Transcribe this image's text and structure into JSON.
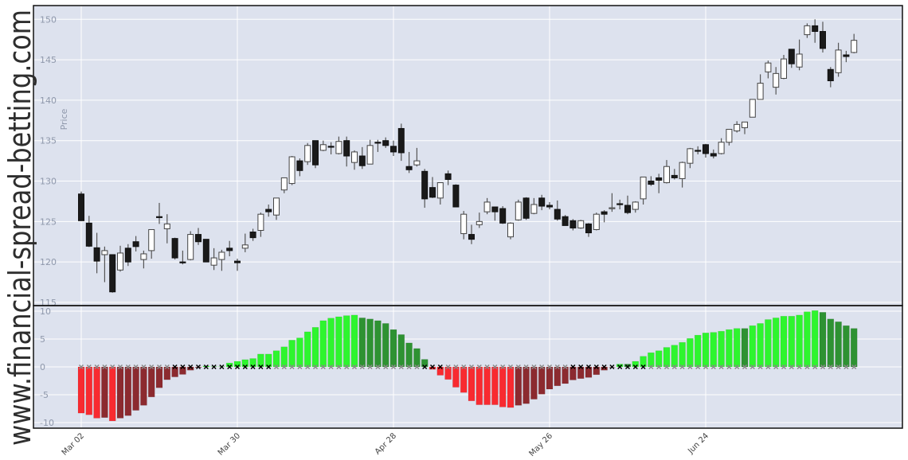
{
  "watermark": "www.financial-spread-betting.com",
  "colors": {
    "plot_background": "#dde2ee",
    "grid": "#ffffff",
    "candle_up": "#ffffff",
    "candle_down": "#1a1a1a",
    "lime": "#2ef52e",
    "darkgreen": "#2e9232",
    "red": "#f82a30",
    "maroon": "#8c2a2f",
    "gray": "#8a8a8a",
    "black": "#000000"
  },
  "chart_data": [
    {
      "type": "candlestick",
      "ylabel": "Price",
      "ylim": [
        114.6,
        151.7
      ],
      "y_ticks": [
        "115",
        "120",
        "125",
        "130",
        "135",
        "140",
        "145",
        "150"
      ],
      "grid": true,
      "x_ticks": [
        {
          "index": 0,
          "label": "Mar 02"
        },
        {
          "index": 20,
          "label": "Mar 30"
        },
        {
          "index": 40,
          "label": "Apr 28"
        },
        {
          "index": 60,
          "label": "May 26"
        },
        {
          "index": 80,
          "label": "Jun 24"
        }
      ],
      "ohlc": [
        [
          128.4,
          128.7,
          125.1,
          125.1
        ],
        [
          124.8,
          125.7,
          121.85,
          121.95
        ],
        [
          121.75,
          123.6,
          118.6,
          120.1
        ],
        [
          120.9,
          121.9,
          117.5,
          121.4
        ],
        [
          120.9,
          120.9,
          116.2,
          116.3
        ],
        [
          119.0,
          122.0,
          118.8,
          121.1
        ],
        [
          121.7,
          122.2,
          119.5,
          120.0
        ],
        [
          122.5,
          123.2,
          121.3,
          121.9
        ],
        [
          120.3,
          121.4,
          119.2,
          121.0
        ],
        [
          121.4,
          124.0,
          120.4,
          124.0
        ],
        [
          125.6,
          127.3,
          124.7,
          125.5
        ],
        [
          124.1,
          125.9,
          122.3,
          124.7
        ],
        [
          122.9,
          123.0,
          120.3,
          120.5
        ],
        [
          120.0,
          121.4,
          119.7,
          119.9
        ],
        [
          120.3,
          123.8,
          120.2,
          123.4
        ],
        [
          123.4,
          124.2,
          122.1,
          122.5
        ],
        [
          122.8,
          122.8,
          120.0,
          120.0
        ],
        [
          119.6,
          121.7,
          119.0,
          120.5
        ],
        [
          120.3,
          121.5,
          118.9,
          121.2
        ],
        [
          121.7,
          122.6,
          120.7,
          121.4
        ],
        [
          120.1,
          120.4,
          118.9,
          119.9
        ],
        [
          121.7,
          123.5,
          121.2,
          122.1
        ],
        [
          123.7,
          124.1,
          122.6,
          123.0
        ],
        [
          123.9,
          126.1,
          123.1,
          125.9
        ],
        [
          126.5,
          127.1,
          125.6,
          126.2
        ],
        [
          125.8,
          127.9,
          125.2,
          127.9
        ],
        [
          128.9,
          130.4,
          128.5,
          130.4
        ],
        [
          129.7,
          133.1,
          129.5,
          133.0
        ],
        [
          132.5,
          132.8,
          130.6,
          131.3
        ],
        [
          132.4,
          134.7,
          132.0,
          134.4
        ],
        [
          135.0,
          135.0,
          131.6,
          132.0
        ],
        [
          133.8,
          135.0,
          133.7,
          134.5
        ],
        [
          134.3,
          134.8,
          133.3,
          134.2
        ],
        [
          133.4,
          135.5,
          133.3,
          134.9
        ],
        [
          135.0,
          135.5,
          131.8,
          133.1
        ],
        [
          132.3,
          133.8,
          131.4,
          133.6
        ],
        [
          133.1,
          134.2,
          131.5,
          131.9
        ],
        [
          132.1,
          135.1,
          132.1,
          134.4
        ],
        [
          134.8,
          135.1,
          133.6,
          134.7
        ],
        [
          135.0,
          135.4,
          134.1,
          134.4
        ],
        [
          134.3,
          135.0,
          133.1,
          133.6
        ],
        [
          136.5,
          137.1,
          132.5,
          133.5
        ],
        [
          131.8,
          133.6,
          131.0,
          131.4
        ],
        [
          132.0,
          134.1,
          131.8,
          132.5
        ],
        [
          131.2,
          131.5,
          126.7,
          127.8
        ],
        [
          129.2,
          130.5,
          127.9,
          128.0
        ],
        [
          127.9,
          129.8,
          127.1,
          129.8
        ],
        [
          130.9,
          131.3,
          129.5,
          130.2
        ],
        [
          129.5,
          129.6,
          126.8,
          126.8
        ],
        [
          123.5,
          126.3,
          122.8,
          125.9
        ],
        [
          123.4,
          124.6,
          122.2,
          122.8
        ],
        [
          124.6,
          126.1,
          124.2,
          125.0
        ],
        [
          126.2,
          127.9,
          125.9,
          127.4
        ],
        [
          126.8,
          126.8,
          125.1,
          126.2
        ],
        [
          126.6,
          126.9,
          124.7,
          124.8
        ],
        [
          123.1,
          124.9,
          122.8,
          124.8
        ],
        [
          125.2,
          127.7,
          125.1,
          127.4
        ],
        [
          127.9,
          128.0,
          125.2,
          125.4
        ],
        [
          126.0,
          127.9,
          125.9,
          127.1
        ],
        [
          127.9,
          128.3,
          126.4,
          126.9
        ],
        [
          127.0,
          127.4,
          126.5,
          126.8
        ],
        [
          126.5,
          127.6,
          125.1,
          125.3
        ],
        [
          125.6,
          125.8,
          124.5,
          124.5
        ],
        [
          125.1,
          125.3,
          123.9,
          124.2
        ],
        [
          124.2,
          125.2,
          124.1,
          125.1
        ],
        [
          124.7,
          124.8,
          123.1,
          123.6
        ],
        [
          124.0,
          126.1,
          123.9,
          125.9
        ],
        [
          126.2,
          126.4,
          124.9,
          125.9
        ],
        [
          126.6,
          128.5,
          126.2,
          126.7
        ],
        [
          127.2,
          127.7,
          126.5,
          127.1
        ],
        [
          127.0,
          128.2,
          125.9,
          126.1
        ],
        [
          126.5,
          127.5,
          126.1,
          127.4
        ],
        [
          127.8,
          130.5,
          127.1,
          130.5
        ],
        [
          130.0,
          130.6,
          129.4,
          129.6
        ],
        [
          130.4,
          130.9,
          128.5,
          130.1
        ],
        [
          129.8,
          132.6,
          129.7,
          131.8
        ],
        [
          130.7,
          131.5,
          130.2,
          130.4
        ],
        [
          130.3,
          132.4,
          129.2,
          132.3
        ],
        [
          132.2,
          134.1,
          131.6,
          134.0
        ],
        [
          133.8,
          134.3,
          133.3,
          133.7
        ],
        [
          134.5,
          134.6,
          132.9,
          133.4
        ],
        [
          133.4,
          133.9,
          132.8,
          133.1
        ],
        [
          133.4,
          135.3,
          133.3,
          134.8
        ],
        [
          134.8,
          136.4,
          134.4,
          136.4
        ],
        [
          136.2,
          137.4,
          136.0,
          137.0
        ],
        [
          136.6,
          137.3,
          135.8,
          137.3
        ],
        [
          137.9,
          140.1,
          137.9,
          140.1
        ],
        [
          140.1,
          143.2,
          140.1,
          142.1
        ],
        [
          143.5,
          144.9,
          142.7,
          144.6
        ],
        [
          141.6,
          144.1,
          140.7,
          143.3
        ],
        [
          142.7,
          145.6,
          142.6,
          145.1
        ],
        [
          146.3,
          146.3,
          144.0,
          144.5
        ],
        [
          144.1,
          147.5,
          143.7,
          145.7
        ],
        [
          148.1,
          149.5,
          147.7,
          149.2
        ],
        [
          149.2,
          150.0,
          147.1,
          148.5
        ],
        [
          148.5,
          149.7,
          145.9,
          146.4
        ],
        [
          143.8,
          144.1,
          141.6,
          142.4
        ],
        [
          143.4,
          147.1,
          142.9,
          146.2
        ],
        [
          145.6,
          146.1,
          144.7,
          145.4
        ],
        [
          145.9,
          148.2,
          145.8,
          147.4
        ]
      ]
    },
    {
      "type": "bar",
      "ylim": [
        -11,
        11
      ],
      "y_ticks": [
        "-10",
        "-5",
        "0",
        "5",
        "10"
      ],
      "grid": true,
      "values": [
        -8.3,
        -8.6,
        -9.2,
        -9.1,
        -9.7,
        -9.2,
        -8.75,
        -7.8,
        -6.9,
        -5.4,
        -3.75,
        -2.3,
        -1.8,
        -1.35,
        -0.6,
        -0.1,
        0.15,
        0.05,
        0.05,
        0.7,
        1.0,
        1.3,
        1.5,
        2.3,
        2.3,
        2.9,
        3.6,
        4.8,
        5.2,
        6.3,
        7.1,
        8.3,
        8.75,
        9.0,
        9.2,
        9.3,
        8.8,
        8.6,
        8.3,
        7.8,
        6.7,
        5.8,
        4.3,
        3.3,
        1.35,
        -0.45,
        -1.5,
        -2.25,
        -3.65,
        -4.6,
        -6.1,
        -6.8,
        -6.8,
        -6.8,
        -7.2,
        -7.3,
        -6.9,
        -6.6,
        -5.8,
        -4.9,
        -4.0,
        -3.4,
        -3.0,
        -2.35,
        -2.1,
        -1.9,
        -1.4,
        -0.6,
        -0.05,
        0.5,
        0.5,
        1.0,
        1.9,
        2.55,
        2.9,
        3.5,
        3.9,
        4.4,
        5.1,
        5.7,
        6.1,
        6.2,
        6.4,
        6.7,
        6.9,
        6.9,
        7.4,
        7.8,
        8.5,
        8.8,
        9.1,
        9.1,
        9.3,
        9.9,
        10.1,
        9.8,
        8.6,
        8.1,
        7.4,
        6.9
      ],
      "bar_colors": [
        "red",
        "red",
        "red",
        "maroon",
        "red",
        "maroon",
        "maroon",
        "maroon",
        "maroon",
        "maroon",
        "maroon",
        "maroon",
        "maroon",
        "maroon",
        "maroon",
        "maroon",
        "lime",
        "lime",
        "lime",
        "lime",
        "lime",
        "lime",
        "lime",
        "lime",
        "lime",
        "lime",
        "lime",
        "lime",
        "lime",
        "lime",
        "lime",
        "lime",
        "lime",
        "lime",
        "lime",
        "lime",
        "darkgreen",
        "darkgreen",
        "darkgreen",
        "darkgreen",
        "darkgreen",
        "darkgreen",
        "darkgreen",
        "darkgreen",
        "darkgreen",
        "red",
        "red",
        "red",
        "red",
        "red",
        "red",
        "red",
        "red",
        "red",
        "red",
        "red",
        "maroon",
        "maroon",
        "maroon",
        "maroon",
        "maroon",
        "maroon",
        "maroon",
        "maroon",
        "maroon",
        "maroon",
        "maroon",
        "maroon",
        "maroon",
        "lime",
        "darkgreen",
        "lime",
        "lime",
        "lime",
        "lime",
        "lime",
        "lime",
        "lime",
        "lime",
        "lime",
        "lime",
        "lime",
        "lime",
        "lime",
        "lime",
        "darkgreen",
        "lime",
        "lime",
        "lime",
        "lime",
        "lime",
        "lime",
        "lime",
        "lime",
        "lime",
        "darkgreen",
        "darkgreen",
        "darkgreen",
        "darkgreen",
        "darkgreen"
      ],
      "zero_markers": [
        "gray",
        "gray",
        "gray",
        "gray",
        "gray",
        "gray",
        "gray",
        "gray",
        "gray",
        "gray",
        "gray",
        "gray",
        "black",
        "black",
        "black",
        "black",
        "black",
        "black",
        "black",
        "black",
        "black",
        "black",
        "black",
        "black",
        "black",
        "gray",
        "gray",
        "gray",
        "gray",
        "gray",
        "gray",
        "gray",
        "gray",
        "gray",
        "gray",
        "gray",
        "gray",
        "gray",
        "gray",
        "gray",
        "gray",
        "gray",
        "gray",
        "gray",
        "black",
        "black",
        "black",
        "gray",
        "gray",
        "gray",
        "gray",
        "gray",
        "gray",
        "gray",
        "gray",
        "gray",
        "gray",
        "gray",
        "gray",
        "gray",
        "gray",
        "gray",
        "gray",
        "black",
        "black",
        "black",
        "black",
        "black",
        "black",
        "black",
        "black",
        "black",
        "black",
        "gray",
        "gray",
        "gray",
        "gray",
        "gray",
        "gray",
        "gray",
        "gray",
        "gray",
        "gray",
        "gray",
        "gray",
        "gray",
        "gray",
        "gray",
        "gray",
        "gray",
        "gray",
        "gray",
        "gray",
        "gray",
        "gray",
        "gray",
        "gray",
        "gray",
        "gray",
        "gray"
      ]
    }
  ]
}
